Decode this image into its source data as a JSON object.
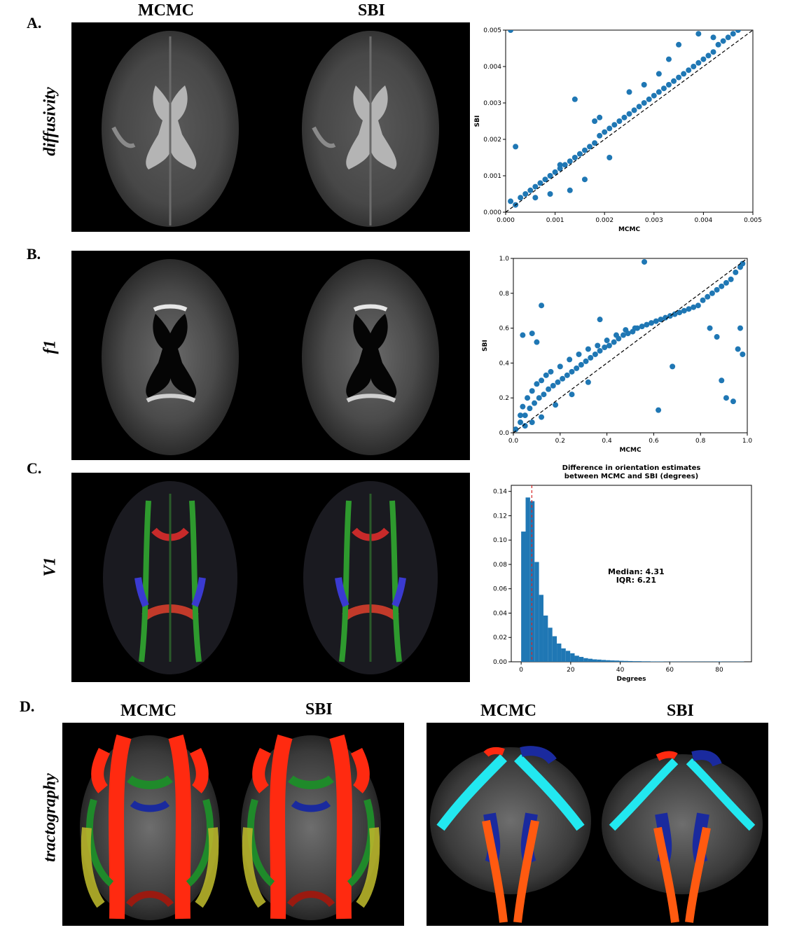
{
  "headers": {
    "top_left": "MCMC",
    "top_right": "SBI",
    "d_left1": "MCMC",
    "d_left2": "SBI",
    "d_right1": "MCMC",
    "d_right2": "SBI"
  },
  "panel_labels": {
    "a": "A.",
    "b": "B.",
    "c": "C.",
    "d": "D."
  },
  "row_labels": {
    "a": "diffusivity",
    "b": "f1",
    "c": "V1",
    "d": "tractography"
  },
  "colors": {
    "scatter": "#1f77b4",
    "hist": "#1f77b4",
    "median_line": "#d62728",
    "tract_red": "#ff2a10",
    "tract_green": "#1f8a2a",
    "tract_yellow": "#b7b42a",
    "tract_blue": "#1a2a9e",
    "tract_cyan": "#22e8f0"
  },
  "chart_data": [
    {
      "type": "scatter",
      "xlabel": "MCMC",
      "ylabel": "SBI",
      "xlim": [
        0,
        0.005
      ],
      "ylim": [
        0,
        0.005
      ],
      "xticks": [
        "0.000",
        "0.001",
        "0.002",
        "0.003",
        "0.004",
        "0.005"
      ],
      "yticks": [
        "0.000",
        "0.001",
        "0.002",
        "0.003",
        "0.004",
        "0.005"
      ],
      "identity_line": true,
      "points": [
        [
          0.0001,
          0.0003
        ],
        [
          0.0002,
          0.0002
        ],
        [
          0.0003,
          0.0004
        ],
        [
          0.0004,
          0.0005
        ],
        [
          0.0005,
          0.0006
        ],
        [
          0.0006,
          0.0007
        ],
        [
          0.0007,
          0.0008
        ],
        [
          0.0008,
          0.0009
        ],
        [
          0.0009,
          0.001
        ],
        [
          0.001,
          0.0011
        ],
        [
          0.0011,
          0.0012
        ],
        [
          0.0012,
          0.0013
        ],
        [
          0.0013,
          0.0014
        ],
        [
          0.0014,
          0.0015
        ],
        [
          0.0015,
          0.0016
        ],
        [
          0.0016,
          0.0017
        ],
        [
          0.0017,
          0.0018
        ],
        [
          0.0018,
          0.0019
        ],
        [
          0.0019,
          0.0021
        ],
        [
          0.002,
          0.0022
        ],
        [
          0.0021,
          0.0023
        ],
        [
          0.0022,
          0.0024
        ],
        [
          0.0023,
          0.0025
        ],
        [
          0.0024,
          0.0026
        ],
        [
          0.0025,
          0.0027
        ],
        [
          0.0026,
          0.0028
        ],
        [
          0.0027,
          0.0029
        ],
        [
          0.0028,
          0.003
        ],
        [
          0.0029,
          0.0031
        ],
        [
          0.003,
          0.0032
        ],
        [
          0.0031,
          0.0033
        ],
        [
          0.0032,
          0.0034
        ],
        [
          0.0033,
          0.0035
        ],
        [
          0.0034,
          0.0036
        ],
        [
          0.0035,
          0.0037
        ],
        [
          0.0036,
          0.0038
        ],
        [
          0.0037,
          0.0039
        ],
        [
          0.0038,
          0.004
        ],
        [
          0.0039,
          0.0041
        ],
        [
          0.004,
          0.0042
        ],
        [
          0.0041,
          0.0043
        ],
        [
          0.0042,
          0.0044
        ],
        [
          0.0043,
          0.0046
        ],
        [
          0.0044,
          0.0047
        ],
        [
          0.0045,
          0.0048
        ],
        [
          0.0046,
          0.0049
        ],
        [
          0.0047,
          0.005
        ],
        [
          0.0002,
          0.0018
        ],
        [
          0.0014,
          0.0031
        ],
        [
          0.0019,
          0.0026
        ],
        [
          0.0033,
          0.0042
        ],
        [
          0.0035,
          0.0046
        ],
        [
          0.0039,
          0.0049
        ],
        [
          0.0013,
          0.0006
        ],
        [
          0.0009,
          0.0005
        ],
        [
          0.0016,
          0.0009
        ],
        [
          0.0021,
          0.0015
        ],
        [
          0.0018,
          0.0025
        ],
        [
          0.0025,
          0.0033
        ],
        [
          0.0006,
          0.0004
        ],
        [
          0.0011,
          0.0013
        ],
        [
          0.0028,
          0.0035
        ],
        [
          0.0031,
          0.0038
        ],
        [
          0.0042,
          0.0048
        ],
        [
          0.0001,
          0.005
        ]
      ]
    },
    {
      "type": "scatter",
      "xlabel": "MCMC",
      "ylabel": "SBI",
      "xlim": [
        0,
        1
      ],
      "ylim": [
        0,
        1
      ],
      "xticks": [
        "0.0",
        "0.2",
        "0.4",
        "0.6",
        "0.8",
        "1.0"
      ],
      "yticks": [
        "0.0",
        "0.2",
        "0.4",
        "0.6",
        "0.8",
        "1.0"
      ],
      "identity_line": true,
      "points": [
        [
          0.01,
          0.02
        ],
        [
          0.03,
          0.06
        ],
        [
          0.05,
          0.1
        ],
        [
          0.07,
          0.14
        ],
        [
          0.09,
          0.17
        ],
        [
          0.11,
          0.2
        ],
        [
          0.13,
          0.22
        ],
        [
          0.15,
          0.25
        ],
        [
          0.17,
          0.27
        ],
        [
          0.19,
          0.29
        ],
        [
          0.21,
          0.31
        ],
        [
          0.23,
          0.33
        ],
        [
          0.25,
          0.35
        ],
        [
          0.27,
          0.37
        ],
        [
          0.29,
          0.39
        ],
        [
          0.31,
          0.41
        ],
        [
          0.33,
          0.43
        ],
        [
          0.35,
          0.45
        ],
        [
          0.37,
          0.47
        ],
        [
          0.39,
          0.49
        ],
        [
          0.41,
          0.5
        ],
        [
          0.43,
          0.52
        ],
        [
          0.45,
          0.54
        ],
        [
          0.47,
          0.56
        ],
        [
          0.49,
          0.57
        ],
        [
          0.51,
          0.58
        ],
        [
          0.53,
          0.6
        ],
        [
          0.55,
          0.61
        ],
        [
          0.57,
          0.62
        ],
        [
          0.59,
          0.63
        ],
        [
          0.61,
          0.64
        ],
        [
          0.63,
          0.65
        ],
        [
          0.65,
          0.66
        ],
        [
          0.67,
          0.67
        ],
        [
          0.69,
          0.68
        ],
        [
          0.71,
          0.69
        ],
        [
          0.73,
          0.7
        ],
        [
          0.75,
          0.71
        ],
        [
          0.77,
          0.72
        ],
        [
          0.79,
          0.73
        ],
        [
          0.81,
          0.76
        ],
        [
          0.83,
          0.78
        ],
        [
          0.85,
          0.8
        ],
        [
          0.87,
          0.82
        ],
        [
          0.89,
          0.84
        ],
        [
          0.91,
          0.86
        ],
        [
          0.93,
          0.88
        ],
        [
          0.95,
          0.92
        ],
        [
          0.97,
          0.95
        ],
        [
          0.98,
          0.97
        ],
        [
          0.04,
          0.15
        ],
        [
          0.06,
          0.2
        ],
        [
          0.08,
          0.24
        ],
        [
          0.1,
          0.28
        ],
        [
          0.12,
          0.3
        ],
        [
          0.14,
          0.33
        ],
        [
          0.16,
          0.35
        ],
        [
          0.2,
          0.38
        ],
        [
          0.24,
          0.42
        ],
        [
          0.28,
          0.45
        ],
        [
          0.32,
          0.48
        ],
        [
          0.36,
          0.5
        ],
        [
          0.4,
          0.53
        ],
        [
          0.44,
          0.56
        ],
        [
          0.48,
          0.59
        ],
        [
          0.52,
          0.6
        ],
        [
          0.03,
          0.1
        ],
        [
          0.05,
          0.04
        ],
        [
          0.08,
          0.06
        ],
        [
          0.12,
          0.09
        ],
        [
          0.18,
          0.16
        ],
        [
          0.25,
          0.22
        ],
        [
          0.32,
          0.29
        ],
        [
          0.12,
          0.73
        ],
        [
          0.04,
          0.56
        ],
        [
          0.08,
          0.57
        ],
        [
          0.1,
          0.52
        ],
        [
          0.37,
          0.65
        ],
        [
          0.56,
          0.98
        ],
        [
          0.62,
          0.13
        ],
        [
          0.68,
          0.38
        ],
        [
          0.91,
          0.2
        ],
        [
          0.94,
          0.18
        ],
        [
          0.89,
          0.3
        ],
        [
          0.98,
          0.45
        ],
        [
          0.96,
          0.48
        ],
        [
          0.97,
          0.6
        ],
        [
          0.87,
          0.55
        ],
        [
          0.84,
          0.6
        ]
      ]
    },
    {
      "type": "bar",
      "title": "Difference in orientation estimates\nbetween MCMC and SBI (degrees)",
      "xlabel": "Degrees",
      "ylabel": "",
      "xlim": [
        -4,
        93
      ],
      "ylim": [
        0,
        0.145
      ],
      "xticks": [
        "0",
        "20",
        "40",
        "60",
        "80"
      ],
      "yticks": [
        "0.00",
        "0.02",
        "0.04",
        "0.06",
        "0.08",
        "0.10",
        "0.12",
        "0.14"
      ],
      "bin_width": 1.8,
      "values": [
        0.107,
        0.135,
        0.132,
        0.082,
        0.055,
        0.038,
        0.028,
        0.021,
        0.015,
        0.011,
        0.009,
        0.007,
        0.005,
        0.004,
        0.003,
        0.0025,
        0.002,
        0.0018,
        0.0015,
        0.0013,
        0.0011,
        0.001,
        0.0008,
        0.0007,
        0.0006,
        0.0005,
        0.0005,
        0.0004,
        0.0004,
        0.0003,
        0.0003,
        0.0003,
        0.0002,
        0.0002,
        0.0002,
        0.0002,
        0.0002,
        0.0002,
        0.0002,
        0.0002,
        0.0002,
        0.0002,
        0.0002,
        0.0002,
        0.0003,
        0.0002,
        0.0002,
        0.0002,
        0.0002,
        0.0002
      ],
      "median_line": 4.31,
      "annotation": [
        "Median: 4.31",
        "IQR: 6.21"
      ]
    }
  ]
}
